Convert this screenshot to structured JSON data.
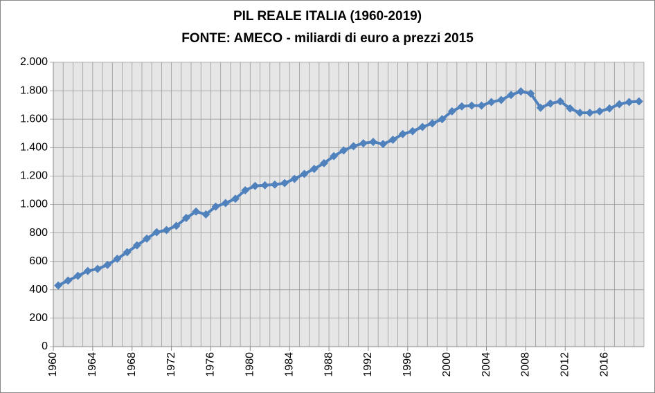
{
  "chart_data": {
    "type": "line",
    "title": "PIL REALE ITALIA (1960-2019)",
    "subtitle": "FONTE: AMECO - miliardi di euro a prezzi 2015",
    "categories": [
      "1960",
      null,
      null,
      null,
      "1964",
      null,
      null,
      null,
      "1968",
      null,
      null,
      null,
      "1972",
      null,
      null,
      null,
      "1976",
      null,
      null,
      null,
      "1980",
      null,
      null,
      null,
      "1984",
      null,
      null,
      null,
      "1988",
      null,
      null,
      null,
      "1992",
      null,
      null,
      null,
      "1996",
      null,
      null,
      null,
      "2000",
      null,
      null,
      null,
      "2004",
      null,
      null,
      null,
      "2008",
      null,
      null,
      null,
      "2012",
      null,
      null,
      null,
      "2016",
      null,
      null,
      null
    ],
    "values": [
      430,
      465,
      498,
      532,
      547,
      575,
      618,
      664,
      712,
      760,
      805,
      820,
      850,
      905,
      950,
      930,
      985,
      1010,
      1040,
      1100,
      1130,
      1135,
      1140,
      1150,
      1180,
      1215,
      1250,
      1290,
      1340,
      1380,
      1410,
      1430,
      1440,
      1425,
      1455,
      1495,
      1515,
      1545,
      1570,
      1600,
      1655,
      1690,
      1695,
      1695,
      1720,
      1735,
      1770,
      1795,
      1780,
      1680,
      1710,
      1725,
      1675,
      1645,
      1645,
      1655,
      1675,
      1705,
      1720,
      1725
    ],
    "color": "#4f81bd",
    "ylim": [
      0,
      2000
    ],
    "yticks": [
      0,
      200,
      400,
      600,
      800,
      {
        "value": 1000,
        "label": "1.000"
      },
      {
        "value": 1200,
        "label": "1.200"
      },
      {
        "value": 1400,
        "label": "1.400"
      },
      {
        "value": 1600,
        "label": "1.600"
      },
      {
        "value": 1800,
        "label": "1.800"
      },
      {
        "value": 2000,
        "label": "2.000"
      }
    ],
    "grid": true
  }
}
